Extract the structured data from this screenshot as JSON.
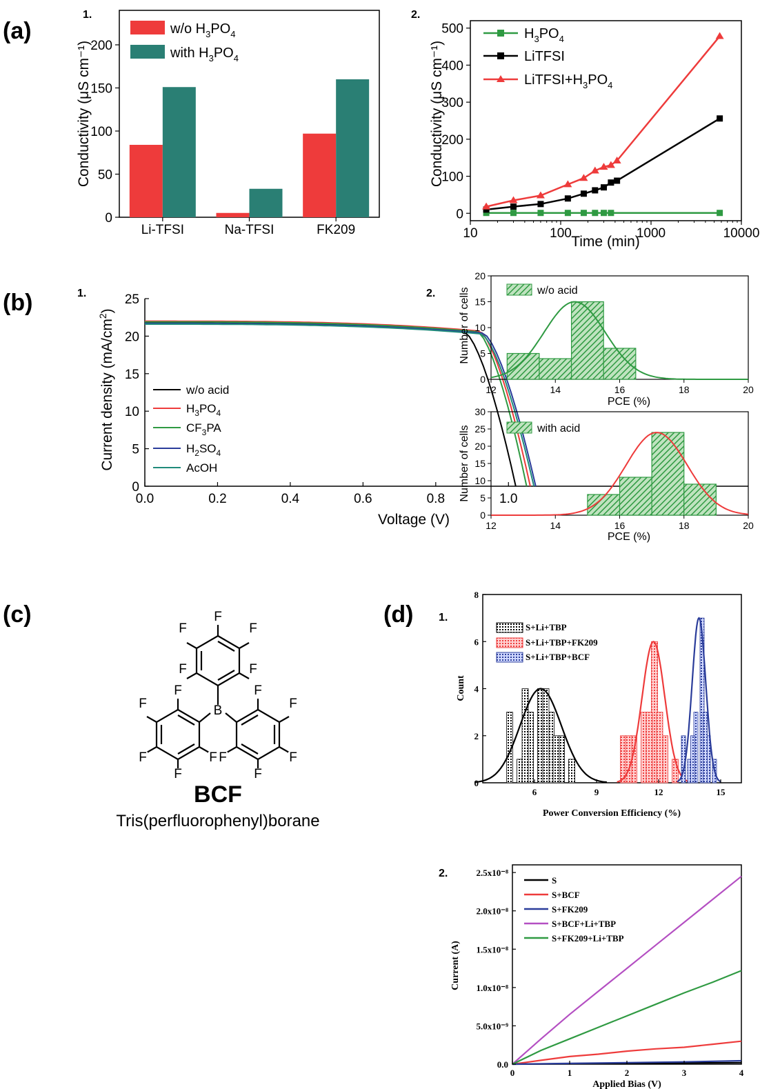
{
  "panels": {
    "a": "(a)",
    "b": "(b)",
    "c": "(c)",
    "d": "(d)",
    "sub1": "1.",
    "sub2": "2."
  },
  "colors": {
    "red": "#ee3b3b",
    "teal": "#2a7f74",
    "green": "#2f9a42",
    "blue": "#2a3c9a",
    "purple": "#b44fc2",
    "black": "#000000"
  },
  "molecule": {
    "name": "BCF",
    "full_name": "Tris(perfluorophenyl)borane",
    "atoms": {
      "F": "F",
      "B": "B"
    }
  },
  "chart_data": [
    {
      "id": "a1",
      "type": "bar",
      "categories": [
        "Li-TFSI",
        "Na-TFSI",
        "FK209"
      ],
      "series": [
        {
          "name": "w/o H3PO4",
          "legend_main": "w/o H",
          "values": [
            84,
            5,
            97
          ],
          "color": "#ee3b3b"
        },
        {
          "name": "with H3PO4",
          "legend_main": "with H",
          "values": [
            151,
            33,
            160
          ],
          "color": "#2a7f74"
        }
      ],
      "ylabel": "Conductivity (μS cm⁻¹)",
      "ylim": [
        0,
        240
      ],
      "yticks": [
        0,
        50,
        100,
        150,
        200
      ]
    },
    {
      "id": "a2",
      "type": "line",
      "xscale": "log",
      "xlabel": "Time (min)",
      "ylabel": "Conductivity (μS cm⁻¹)",
      "xlim": [
        10,
        10000
      ],
      "ylim": [
        -20,
        520
      ],
      "xticks": [
        10,
        100,
        1000,
        10000
      ],
      "yticks": [
        0,
        100,
        200,
        300,
        400,
        500
      ],
      "series": [
        {
          "name": "H3PO4",
          "color": "#2f9a42",
          "marker": "square",
          "x": [
            15,
            30,
            60,
            120,
            180,
            240,
            300,
            360,
            5760
          ],
          "y": [
            1,
            1,
            1,
            1,
            1,
            1,
            1,
            1,
            1
          ]
        },
        {
          "name": "LiTFSI",
          "color": "#000000",
          "marker": "square",
          "x": [
            15,
            30,
            60,
            120,
            180,
            240,
            300,
            360,
            420,
            5760
          ],
          "y": [
            10,
            18,
            25,
            40,
            53,
            62,
            70,
            83,
            88,
            256
          ]
        },
        {
          "name": "LiTFSI+H3PO4",
          "color": "#ee3b3b",
          "marker": "triangle",
          "x": [
            15,
            30,
            60,
            120,
            180,
            240,
            300,
            360,
            420,
            5760
          ],
          "y": [
            18,
            35,
            48,
            78,
            95,
            115,
            125,
            130,
            142,
            478
          ]
        }
      ]
    },
    {
      "id": "b1",
      "type": "line",
      "xlabel": "Voltage (V)",
      "ylabel": "Current density (mA/cm²)",
      "xlim": [
        0,
        1.1
      ],
      "ylim": [
        0,
        25
      ],
      "xticks": [
        0.0,
        0.2,
        0.4,
        0.6,
        0.8,
        1.0
      ],
      "yticks": [
        0,
        5,
        10,
        15,
        20,
        25
      ],
      "series": [
        {
          "name": "w/o acid",
          "color": "#000000",
          "jsc": 21.8,
          "voc": 1.02,
          "knee": 0.88
        },
        {
          "name": "H3PO4",
          "color": "#ee3b3b",
          "jsc": 22.0,
          "voc": 1.06,
          "knee": 0.92
        },
        {
          "name": "CF3PA",
          "color": "#2f9a42",
          "jsc": 21.9,
          "voc": 1.05,
          "knee": 0.915
        },
        {
          "name": "H2SO4",
          "color": "#2a3c9a",
          "jsc": 21.7,
          "voc": 1.075,
          "knee": 0.93
        },
        {
          "name": "AcOH",
          "color": "#1f8a7a",
          "jsc": 21.6,
          "voc": 1.07,
          "knee": 0.925
        }
      ]
    },
    {
      "id": "b2_top",
      "type": "bar",
      "histogram": true,
      "legend": "w/o acid",
      "xlabel": "PCE (%)",
      "ylabel": "Number of cells",
      "xlim": [
        12,
        20
      ],
      "ylim": [
        0,
        20
      ],
      "xticks": [
        12,
        14,
        16,
        18,
        20
      ],
      "yticks": [
        0,
        5,
        10,
        15,
        20
      ],
      "bins": [
        {
          "x0": 12.5,
          "x1": 13.5,
          "y": 5
        },
        {
          "x0": 13.5,
          "x1": 14.5,
          "y": 4
        },
        {
          "x0": 14.5,
          "x1": 15.5,
          "y": 15
        },
        {
          "x0": 15.5,
          "x1": 16.5,
          "y": 6
        }
      ],
      "fit": {
        "mu": 14.6,
        "sigma": 0.95,
        "peak": 15,
        "color": "#2f9a42"
      }
    },
    {
      "id": "b2_bottom",
      "type": "bar",
      "histogram": true,
      "legend": "with acid",
      "xlabel": "PCE (%)",
      "ylabel": "Number of cells",
      "xlim": [
        12,
        20
      ],
      "ylim": [
        0,
        30
      ],
      "xticks": [
        12,
        14,
        16,
        18,
        20
      ],
      "yticks": [
        0,
        5,
        10,
        15,
        20,
        25,
        30
      ],
      "bins": [
        {
          "x0": 15,
          "x1": 16,
          "y": 6
        },
        {
          "x0": 16,
          "x1": 17,
          "y": 11
        },
        {
          "x0": 17,
          "x1": 18,
          "y": 24
        },
        {
          "x0": 18,
          "x1": 19,
          "y": 9
        }
      ],
      "fit": {
        "mu": 17.15,
        "sigma": 0.95,
        "peak": 24,
        "color": "#ee3b3b"
      }
    },
    {
      "id": "d1",
      "type": "bar",
      "histogram": true,
      "xlabel": "Power Conversion Efficiency (%)",
      "ylabel": "Count",
      "xlim": [
        3.5,
        16
      ],
      "ylim": [
        0,
        8
      ],
      "xticks": [
        6,
        9,
        12,
        15
      ],
      "yticks": [
        0,
        2,
        4,
        6,
        8
      ],
      "series": [
        {
          "name": "S+Li+TBP",
          "color": "#000000",
          "x": [
            4.8,
            5.3,
            5.8,
            6.3,
            6.8,
            7.3,
            7.8
          ],
          "y": [
            3,
            1,
            3,
            4,
            3,
            2,
            1
          ],
          "extra_x": [
            5.55,
            6.55,
            7.05
          ],
          "extra_y": [
            4,
            4,
            2
          ],
          "fit": {
            "mu": 6.3,
            "sigma": 1.0,
            "peak": 4
          }
        },
        {
          "name": "S+Li+TBP+FK209",
          "color": "#ee3b3b",
          "x": [
            10.3,
            10.8,
            11.3,
            11.8,
            12.3,
            12.8
          ],
          "y": [
            2,
            2,
            3,
            6,
            2,
            1
          ],
          "extra_x": [
            10.55,
            11.55,
            12.05
          ],
          "extra_y": [
            2,
            3,
            3
          ],
          "fit": {
            "mu": 11.75,
            "sigma": 0.55,
            "peak": 6
          }
        },
        {
          "name": "S+Li+TBP+BCF",
          "color": "#2a3c9a",
          "x": [
            13.2,
            13.5,
            13.8,
            14.1,
            14.4,
            14.7
          ],
          "y": [
            2,
            1,
            3,
            7,
            2,
            1
          ],
          "extra_x": [
            13.65,
            14.25
          ],
          "extra_y": [
            2,
            3
          ],
          "fit": {
            "mu": 13.95,
            "sigma": 0.33,
            "peak": 7
          }
        }
      ]
    },
    {
      "id": "d2",
      "type": "line",
      "xlabel": "Applied Bias (V)",
      "ylabel": "Current (A)",
      "xlim": [
        0,
        4
      ],
      "ylim": [
        0,
        2.6e-08
      ],
      "xticks": [
        0,
        1,
        2,
        3,
        4
      ],
      "yticks": [
        0,
        5e-09,
        1e-08,
        1.5e-08,
        2e-08,
        2.5e-08
      ],
      "ytick_labels": [
        "0.0",
        "5.0x10⁻⁹",
        "1.0x10⁻⁸",
        "1.5x10⁻⁸",
        "2.0x10⁻⁸",
        "2.5x10⁻⁸"
      ],
      "series": [
        {
          "name": "S",
          "color": "#000000",
          "x": [
            0,
            1,
            2,
            3,
            4
          ],
          "y": [
            0,
            5e-11,
            1e-10,
            1.5e-10,
            2e-10
          ]
        },
        {
          "name": "S+BCF",
          "color": "#ee3b3b",
          "x": [
            0,
            0.5,
            1,
            1.5,
            2,
            2.5,
            3,
            3.5,
            4
          ],
          "y": [
            0,
            5e-10,
            1e-09,
            1.3e-09,
            1.7e-09,
            2e-09,
            2.2e-09,
            2.6e-09,
            3e-09
          ]
        },
        {
          "name": "S+FK209",
          "color": "#2a3c9a",
          "x": [
            0,
            1,
            2,
            3,
            4
          ],
          "y": [
            0,
            1e-10,
            2e-10,
            3e-10,
            4.5e-10
          ]
        },
        {
          "name": "S+BCF+Li+TBP",
          "color": "#b44fc2",
          "x": [
            0,
            0.5,
            1,
            1.5,
            2,
            2.5,
            3,
            3.5,
            4
          ],
          "y": [
            0,
            3.3e-09,
            6.5e-09,
            9.5e-09,
            1.25e-08,
            1.55e-08,
            1.85e-08,
            2.15e-08,
            2.45e-08
          ]
        },
        {
          "name": "S+FK209+Li+TBP",
          "color": "#2f9a42",
          "x": [
            0,
            0.5,
            1,
            1.5,
            2,
            2.5,
            3,
            3.5,
            4
          ],
          "y": [
            0,
            1.8e-09,
            3.3e-09,
            4.8e-09,
            6.3e-09,
            7.8e-09,
            9.3e-09,
            1.07e-08,
            1.22e-08
          ]
        }
      ]
    }
  ]
}
